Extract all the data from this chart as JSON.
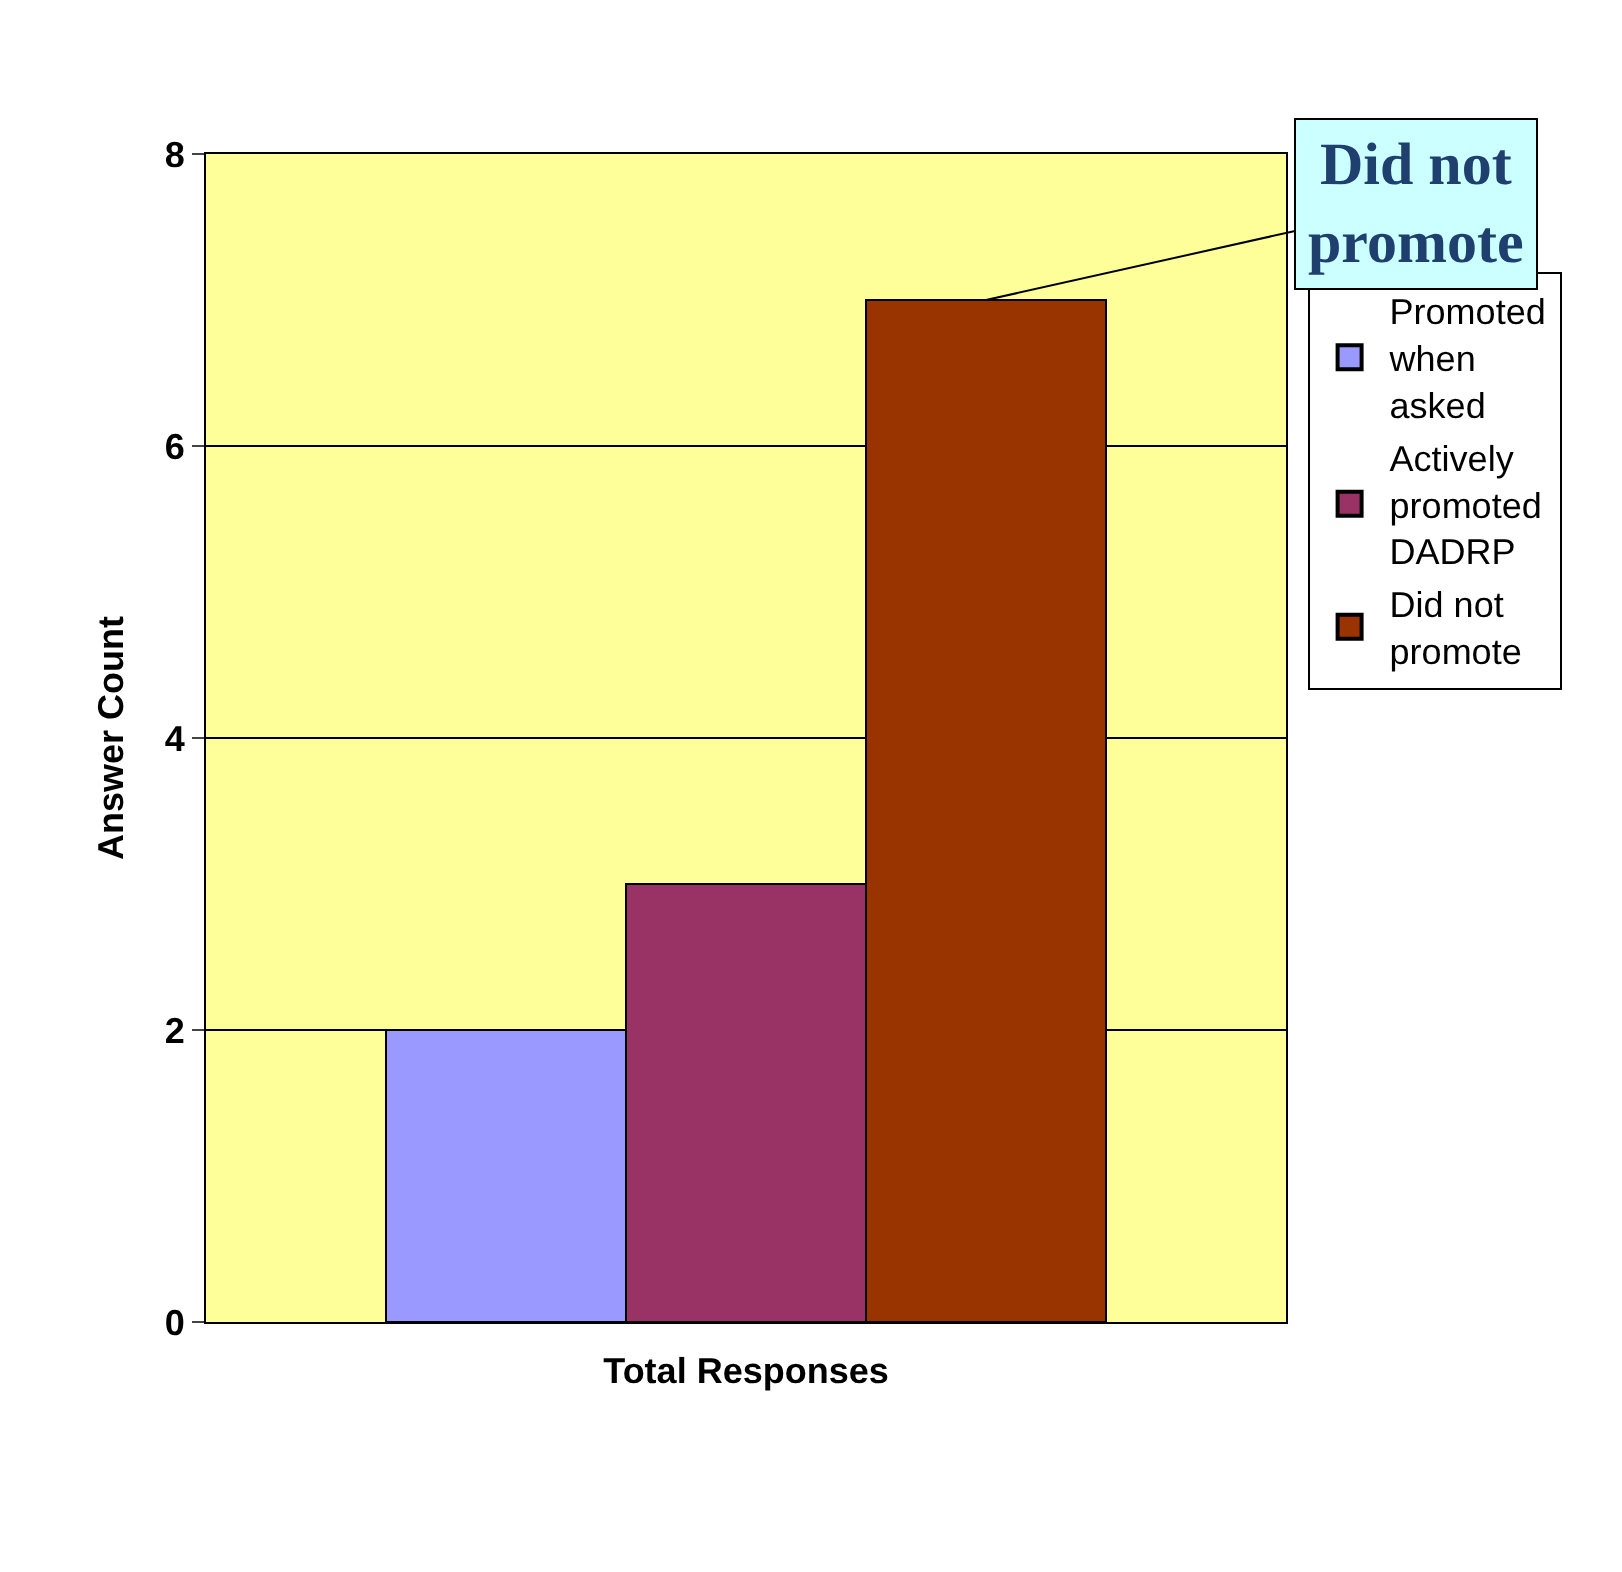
{
  "chart_data": {
    "type": "bar",
    "categories": [
      "Total Responses"
    ],
    "ylabel": "Answer Count",
    "series": [
      {
        "name": "Promoted when asked",
        "color": "#9999ff",
        "values": [
          2
        ]
      },
      {
        "name": "Actively promoted DADRP",
        "color": "#993366",
        "values": [
          3
        ]
      },
      {
        "name": "Did not promote",
        "color": "#993300",
        "values": [
          7
        ]
      }
    ],
    "ylim": [
      0,
      8
    ],
    "yticks": [
      0,
      2,
      4,
      6,
      8
    ],
    "grid": "y",
    "legend": "right",
    "annotations": [
      "Did not promote"
    ]
  }
}
